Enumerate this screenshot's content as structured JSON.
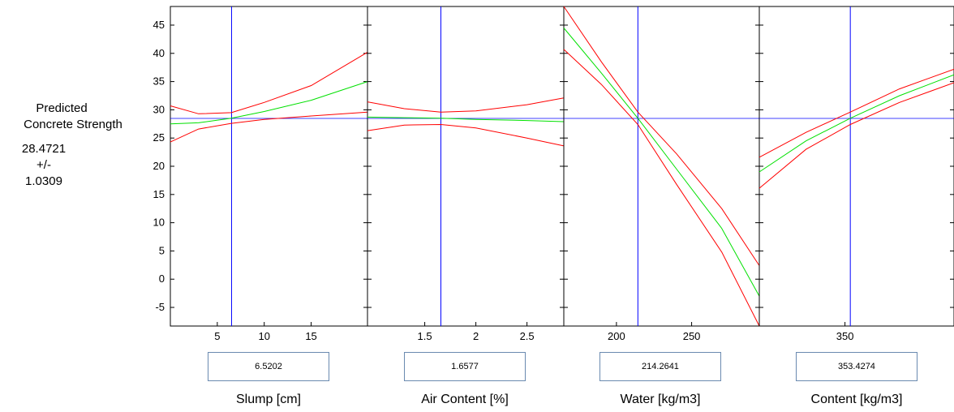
{
  "ylabel": {
    "line1": "Predicted",
    "line2": "Concrete Strength",
    "value": "28.4721",
    "pm": "+/-",
    "ci": "1.0309"
  },
  "colors": {
    "prediction": "#00e000",
    "bounds": "#ff0000",
    "crosshair": "#0000ff",
    "axis": "#000000"
  },
  "chart_data": {
    "type": "line",
    "title": "",
    "ylabel": "Predicted Concrete Strength",
    "ylim": [
      -8.3,
      48.3
    ],
    "yticks": [
      -5,
      0,
      5,
      10,
      15,
      20,
      25,
      30,
      35,
      40,
      45
    ],
    "current_y": 28.4721,
    "ci_halfwidth": 1.0309,
    "panels": [
      {
        "xlabel": "Slump [cm]",
        "current_x_text": "6.5202",
        "current_x": 6.5202,
        "xlim": [
          0,
          21
        ],
        "xticks": [
          5,
          10,
          15
        ],
        "series": [
          {
            "name": "",
            "role": "prediction",
            "x": [
              0,
              3,
              6.5,
              10,
              15,
              21
            ],
            "y": [
              27.5,
              27.7,
              28.5,
              29.7,
              31.7,
              35.0
            ]
          },
          {
            "name": "",
            "role": "upper",
            "x": [
              0,
              3,
              6.5,
              10,
              15,
              21
            ],
            "y": [
              30.7,
              29.3,
              29.5,
              31.3,
              34.3,
              40.2
            ]
          },
          {
            "name": "",
            "role": "lower",
            "x": [
              0,
              3,
              6.5,
              10,
              15,
              21
            ],
            "y": [
              24.3,
              26.6,
              27.6,
              28.3,
              28.9,
              29.6
            ]
          }
        ]
      },
      {
        "xlabel": "Air Content [%]",
        "current_x_text": "1.6577",
        "current_x": 1.6577,
        "xlim": [
          0.94,
          2.86
        ],
        "xticks": [
          1.5,
          2,
          2.5
        ],
        "series": [
          {
            "name": "",
            "role": "prediction",
            "x": [
              0.94,
              1.3,
              1.6577,
              2.0,
              2.5,
              2.86
            ],
            "y": [
              28.7,
              28.6,
              28.5,
              28.3,
              28.1,
              27.9
            ]
          },
          {
            "name": "",
            "role": "upper",
            "x": [
              0.94,
              1.3,
              1.6577,
              2.0,
              2.5,
              2.86
            ],
            "y": [
              31.4,
              30.2,
              29.6,
              29.8,
              30.9,
              32.1
            ]
          },
          {
            "name": "",
            "role": "lower",
            "x": [
              0.94,
              1.3,
              1.6577,
              2.0,
              2.5,
              2.86
            ],
            "y": [
              26.3,
              27.3,
              27.4,
              26.8,
              25.0,
              23.6
            ]
          }
        ]
      },
      {
        "xlabel": "Water [kg/m3]",
        "current_x_text": "214.2641",
        "current_x": 214.2641,
        "xlim": [
          165,
          295
        ],
        "xticks": [
          200,
          250
        ],
        "series": [
          {
            "name": "",
            "role": "prediction",
            "x": [
              165,
              190,
              214.2641,
              240,
              270,
              295
            ],
            "y": [
              44.5,
              36.5,
              28.5,
              19.5,
              9.0,
              -3.0
            ]
          },
          {
            "name": "",
            "role": "upper",
            "x": [
              165,
              190,
              214.2641,
              240,
              270,
              295
            ],
            "y": [
              48.3,
              38.5,
              29.6,
              22.2,
              12.5,
              2.4
            ]
          },
          {
            "name": "",
            "role": "lower",
            "x": [
              165,
              190,
              214.2641,
              240,
              270,
              295
            ],
            "y": [
              40.7,
              34.5,
              27.4,
              16.8,
              4.8,
              -8.3
            ]
          }
        ]
      },
      {
        "xlabel": "Content [kg/m3]",
        "current_x_text": "353.4274",
        "current_x": 353.4274,
        "xlim": [
          295,
          420
        ],
        "xticks": [
          350
        ],
        "series": [
          {
            "name": "",
            "role": "prediction",
            "x": [
              295,
              325,
              353.4274,
              385,
              420
            ],
            "y": [
              19.0,
              24.5,
              28.5,
              32.5,
              36.2
            ]
          },
          {
            "name": "",
            "role": "upper",
            "x": [
              295,
              325,
              353.4274,
              385,
              420
            ],
            "y": [
              21.6,
              26.0,
              29.6,
              33.7,
              37.2
            ]
          },
          {
            "name": "",
            "role": "lower",
            "x": [
              295,
              325,
              353.4274,
              385,
              420
            ],
            "y": [
              16.1,
              23.0,
              27.4,
              31.3,
              34.8
            ]
          }
        ]
      }
    ]
  }
}
